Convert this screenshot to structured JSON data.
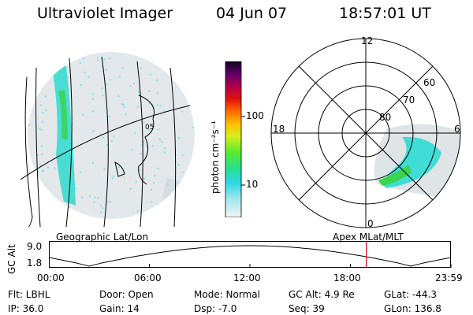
{
  "header": {
    "title": "Ultraviolet Imager",
    "date": "04 Jun 07",
    "time": "18:57:01 UT"
  },
  "colorbar": {
    "unit": "photon cm⁻²s⁻¹",
    "ticks": [
      "100",
      "10"
    ]
  },
  "polar": {
    "lat_labels": [
      "60",
      "70",
      "80"
    ],
    "mlt_labels": {
      "top": "12",
      "left": "18",
      "right": "6",
      "bottom": "0"
    }
  },
  "labels": {
    "left_panel": "Geographic Lat/Lon",
    "right_panel": "Apex MLat/MLT"
  },
  "altitude_plot": {
    "axis_label": "GC Alt",
    "y_ticks": [
      "9.0",
      "1.8"
    ],
    "x_ticks": [
      "00:00",
      "06:00",
      "12:00",
      "18:00",
      "23:59"
    ],
    "current_marker_time": "18:57"
  },
  "info": {
    "flt": "Flt: LBHL",
    "door": "Door: Open",
    "mode": "Mode: Normal",
    "gc_alt": "GC Alt: 4.9 Re",
    "glat": "GLat: -44.3",
    "ip": "IP: 36.0",
    "gain": "Gain: 14",
    "dsp": "Dsp:  -7.0",
    "seq": "Seq: 39",
    "glon": "GLon: 136.8"
  },
  "colors": {
    "grid": "#000000",
    "marker": "#e00000",
    "aurora_low": "#d9dde0",
    "aurora_mid": "#35e0d8",
    "aurora_high": "#3adc3a"
  }
}
